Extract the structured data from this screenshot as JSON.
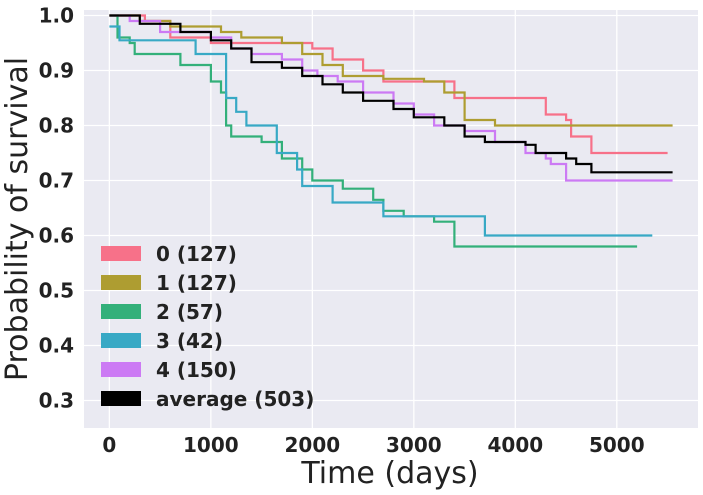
{
  "chart_data": {
    "type": "line",
    "xlabel": "Time (days)",
    "ylabel": "Probability of survival",
    "xlim": [
      -250,
      5800
    ],
    "ylim": [
      0.25,
      1.01
    ],
    "xticks": [
      "0",
      "1000",
      "2000",
      "3000",
      "4000",
      "5000"
    ],
    "yticks": [
      "0.3",
      "0.4",
      "0.5",
      "0.6",
      "0.7",
      "0.8",
      "0.9",
      "1.0"
    ],
    "grid": true,
    "legend_position": "lower-left",
    "series": [
      {
        "name": "0 (127)",
        "color": "#f77189",
        "points": [
          [
            0,
            1.0
          ],
          [
            350,
            0.99
          ],
          [
            600,
            0.96
          ],
          [
            1000,
            0.95
          ],
          [
            1600,
            0.95
          ],
          [
            2000,
            0.94
          ],
          [
            2200,
            0.92
          ],
          [
            2500,
            0.9
          ],
          [
            2700,
            0.88
          ],
          [
            3200,
            0.88
          ],
          [
            3400,
            0.85
          ],
          [
            4200,
            0.85
          ],
          [
            4300,
            0.82
          ],
          [
            4500,
            0.81
          ],
          [
            4550,
            0.78
          ],
          [
            4750,
            0.75
          ],
          [
            5500,
            0.75
          ]
        ]
      },
      {
        "name": "1 (127)",
        "color": "#ae9d31",
        "points": [
          [
            0,
            1.0
          ],
          [
            300,
            0.99
          ],
          [
            600,
            0.98
          ],
          [
            1100,
            0.97
          ],
          [
            1300,
            0.96
          ],
          [
            1700,
            0.95
          ],
          [
            1900,
            0.93
          ],
          [
            2100,
            0.91
          ],
          [
            2300,
            0.89
          ],
          [
            2700,
            0.885
          ],
          [
            3100,
            0.88
          ],
          [
            3300,
            0.86
          ],
          [
            3500,
            0.81
          ],
          [
            3750,
            0.81
          ],
          [
            3800,
            0.8
          ],
          [
            4500,
            0.8
          ],
          [
            5550,
            0.8
          ]
        ]
      },
      {
        "name": "2 (57)",
        "color": "#33b07a",
        "points": [
          [
            0,
            1.0
          ],
          [
            80,
            0.96
          ],
          [
            200,
            0.95
          ],
          [
            250,
            0.93
          ],
          [
            700,
            0.91
          ],
          [
            950,
            0.91
          ],
          [
            1000,
            0.88
          ],
          [
            1100,
            0.86
          ],
          [
            1150,
            0.8
          ],
          [
            1200,
            0.78
          ],
          [
            1500,
            0.77
          ],
          [
            1700,
            0.74
          ],
          [
            1900,
            0.72
          ],
          [
            2000,
            0.7
          ],
          [
            2300,
            0.685
          ],
          [
            2500,
            0.685
          ],
          [
            2600,
            0.665
          ],
          [
            2700,
            0.645
          ],
          [
            2900,
            0.635
          ],
          [
            3200,
            0.625
          ],
          [
            3400,
            0.58
          ],
          [
            5200,
            0.58
          ]
        ]
      },
      {
        "name": "3 (42)",
        "color": "#38a9c5",
        "points": [
          [
            0,
            0.98
          ],
          [
            100,
            0.955
          ],
          [
            700,
            0.955
          ],
          [
            850,
            0.93
          ],
          [
            1100,
            0.93
          ],
          [
            1150,
            0.85
          ],
          [
            1250,
            0.825
          ],
          [
            1350,
            0.8
          ],
          [
            1450,
            0.8
          ],
          [
            1650,
            0.75
          ],
          [
            1850,
            0.72
          ],
          [
            1900,
            0.69
          ],
          [
            2050,
            0.69
          ],
          [
            2200,
            0.66
          ],
          [
            2700,
            0.635
          ],
          [
            3550,
            0.635
          ],
          [
            3700,
            0.6
          ],
          [
            5350,
            0.6
          ]
        ]
      },
      {
        "name": "4 (150)",
        "color": "#cc7af4",
        "points": [
          [
            0,
            1.0
          ],
          [
            200,
            0.99
          ],
          [
            500,
            0.97
          ],
          [
            1000,
            0.96
          ],
          [
            1200,
            0.94
          ],
          [
            1400,
            0.93
          ],
          [
            1700,
            0.92
          ],
          [
            1900,
            0.9
          ],
          [
            2050,
            0.89
          ],
          [
            2250,
            0.88
          ],
          [
            2500,
            0.86
          ],
          [
            2800,
            0.84
          ],
          [
            3000,
            0.82
          ],
          [
            3200,
            0.8
          ],
          [
            3500,
            0.79
          ],
          [
            3800,
            0.77
          ],
          [
            4100,
            0.75
          ],
          [
            4300,
            0.74
          ],
          [
            4350,
            0.73
          ],
          [
            4500,
            0.7
          ],
          [
            5550,
            0.7
          ]
        ]
      },
      {
        "name": "average (503)",
        "color": "#000000",
        "points": [
          [
            0,
            1.0
          ],
          [
            300,
            0.985
          ],
          [
            700,
            0.97
          ],
          [
            1000,
            0.955
          ],
          [
            1200,
            0.94
          ],
          [
            1400,
            0.915
          ],
          [
            1700,
            0.905
          ],
          [
            1900,
            0.89
          ],
          [
            2100,
            0.875
          ],
          [
            2300,
            0.86
          ],
          [
            2500,
            0.845
          ],
          [
            2800,
            0.83
          ],
          [
            3000,
            0.815
          ],
          [
            3300,
            0.8
          ],
          [
            3500,
            0.78
          ],
          [
            3700,
            0.77
          ],
          [
            4100,
            0.765
          ],
          [
            4200,
            0.75
          ],
          [
            4500,
            0.74
          ],
          [
            4600,
            0.73
          ],
          [
            4750,
            0.715
          ],
          [
            5550,
            0.715
          ]
        ]
      }
    ]
  }
}
